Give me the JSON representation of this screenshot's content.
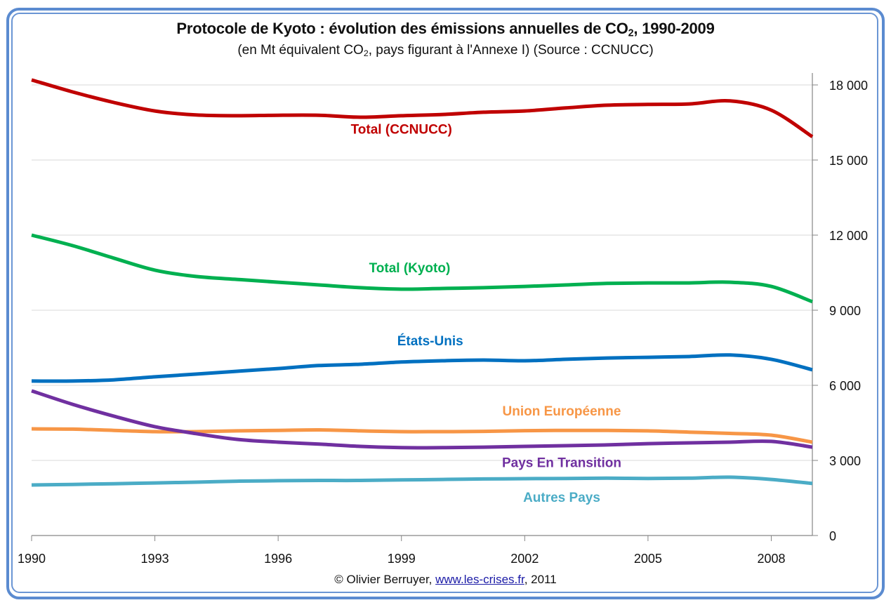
{
  "title": {
    "main_prefix": "Protocole de Kyoto : évolution des émissions annuelles de CO",
    "main_sub": "2",
    "main_suffix": ", 1990-2009",
    "sub_prefix": "(en Mt équivalent CO",
    "sub_sub": "2",
    "sub_suffix": ", pays figurant à l'Annexe I) (Source : CCNUCC)"
  },
  "footer": {
    "copyright": "© Olivier Berruyer, ",
    "link_text": "www.les-crises.fr",
    "suffix": ",  2011"
  },
  "chart_data": {
    "type": "line",
    "title": "Protocole de Kyoto : évolution des émissions annuelles de CO2, 1990-2009",
    "subtitle": "(en Mt équivalent CO2, pays figurant à l'Annexe I) (Source : CCNUCC)",
    "xlabel": "",
    "ylabel": "",
    "x": [
      1990,
      1991,
      1992,
      1993,
      1994,
      1995,
      1996,
      1997,
      1998,
      1999,
      2000,
      2001,
      2002,
      2003,
      2004,
      2005,
      2006,
      2007,
      2008,
      2009
    ],
    "xlim": [
      1990,
      2009
    ],
    "ylim": [
      0,
      18000
    ],
    "x_ticks": [
      1990,
      1993,
      1996,
      1999,
      2002,
      2005,
      2008
    ],
    "x_tick_labels": [
      "1990",
      "1993",
      "1996",
      "1999",
      "2002",
      "2005",
      "2008"
    ],
    "y_ticks": [
      0,
      3000,
      6000,
      9000,
      12000,
      15000,
      18000
    ],
    "y_tick_labels": [
      "0",
      "3 000",
      "6 000",
      "9 000",
      "12 000",
      "15 000",
      "18 000"
    ],
    "y_axis_side": "right",
    "grid": "horizontal",
    "legend": "inline labels",
    "series": [
      {
        "name": "Total (CCNUCC)",
        "color": "#c00000",
        "label_anchor": {
          "x": 1999,
          "y": 16050
        },
        "values": [
          18200,
          17720,
          17300,
          16960,
          16800,
          16770,
          16790,
          16790,
          16710,
          16770,
          16820,
          16910,
          16960,
          17080,
          17190,
          17220,
          17240,
          17360,
          16990,
          15930
        ]
      },
      {
        "name": "Total (Kyoto)",
        "color": "#00b050",
        "label_anchor": {
          "x": 1999.2,
          "y": 10520
        },
        "values": [
          12000,
          11580,
          11080,
          10600,
          10350,
          10230,
          10120,
          10010,
          9900,
          9840,
          9870,
          9900,
          9950,
          10010,
          10070,
          10090,
          10090,
          10120,
          9950,
          9340
        ]
      },
      {
        "name": "États-Unis",
        "color": "#0070c0",
        "label_anchor": {
          "x": 1999.7,
          "y": 7600
        },
        "values": [
          6170,
          6170,
          6220,
          6340,
          6450,
          6560,
          6670,
          6790,
          6840,
          6930,
          6980,
          7010,
          6980,
          7040,
          7090,
          7120,
          7150,
          7210,
          7040,
          6620
        ]
      },
      {
        "name": "Union Européenne",
        "color": "#f79646",
        "label_anchor": {
          "x": 2002.9,
          "y": 4800
        },
        "values": [
          4260,
          4250,
          4200,
          4150,
          4150,
          4180,
          4200,
          4220,
          4180,
          4150,
          4150,
          4160,
          4190,
          4200,
          4200,
          4180,
          4130,
          4080,
          4010,
          3730
        ]
      },
      {
        "name": "Pays En Transition",
        "color": "#7030a0",
        "label_anchor": {
          "x": 2002.9,
          "y": 2730
        },
        "values": [
          5780,
          5240,
          4770,
          4350,
          4070,
          3840,
          3730,
          3650,
          3560,
          3510,
          3510,
          3530,
          3560,
          3590,
          3620,
          3670,
          3700,
          3730,
          3760,
          3530
        ]
      },
      {
        "name": "Autres Pays",
        "color": "#4bacc6",
        "label_anchor": {
          "x": 2002.9,
          "y": 1340
        },
        "values": [
          2020,
          2040,
          2070,
          2100,
          2130,
          2170,
          2190,
          2200,
          2200,
          2220,
          2240,
          2260,
          2270,
          2280,
          2290,
          2280,
          2290,
          2330,
          2240,
          2080
        ]
      }
    ]
  }
}
